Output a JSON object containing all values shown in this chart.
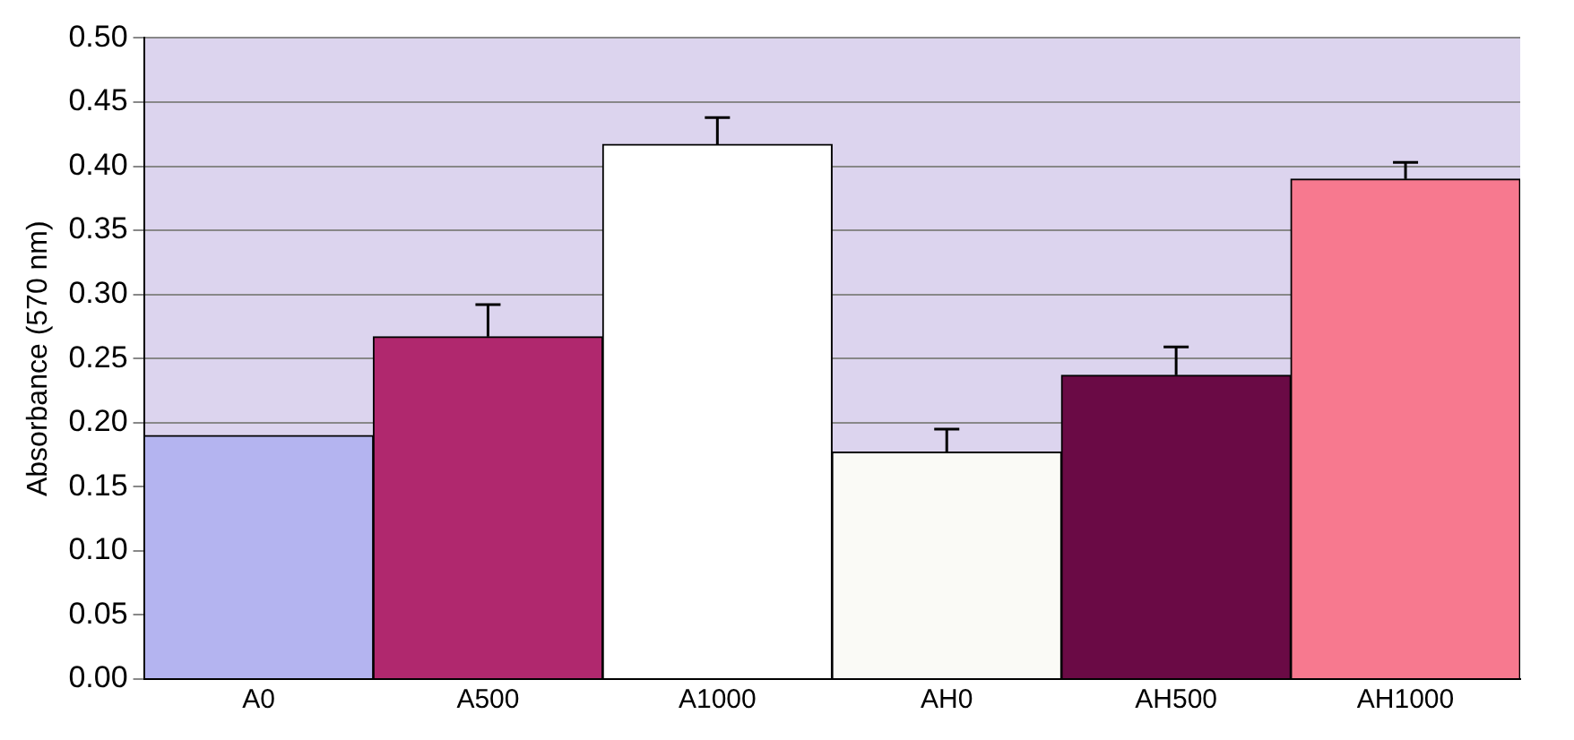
{
  "chart_data": {
    "type": "bar",
    "ylabel": "Absorbance (570 nm)",
    "categories": [
      "A0",
      "A500",
      "A1000",
      "AH0",
      "AH500",
      "AH1000"
    ],
    "values": [
      0.19,
      0.267,
      0.417,
      0.177,
      0.237,
      0.39
    ],
    "colors": [
      "#b4b4f0",
      "#b0286e",
      "#ffffff",
      "#fafaf6",
      "#6a0a45",
      "#f7798f"
    ],
    "errors": [
      null,
      [
        0.267,
        0.292
      ],
      [
        0.417,
        0.438
      ],
      [
        0.177,
        0.195
      ],
      [
        0.237,
        0.259
      ],
      [
        0.39,
        0.403
      ]
    ],
    "ylim": [
      0,
      0.5
    ],
    "yticks": [
      {
        "value": 0,
        "label": "0.00"
      },
      0.05,
      {
        "value": 0.1,
        "label": "0.10"
      },
      0.15,
      {
        "value": 0.2,
        "label": "0.20"
      },
      0.25,
      {
        "value": 0.3,
        "label": "0.30"
      },
      0.35,
      {
        "value": 0.4,
        "label": "0.40"
      },
      0.45,
      {
        "value": 0.5,
        "label": "0.50"
      }
    ],
    "grid": "y",
    "legend": false
  }
}
